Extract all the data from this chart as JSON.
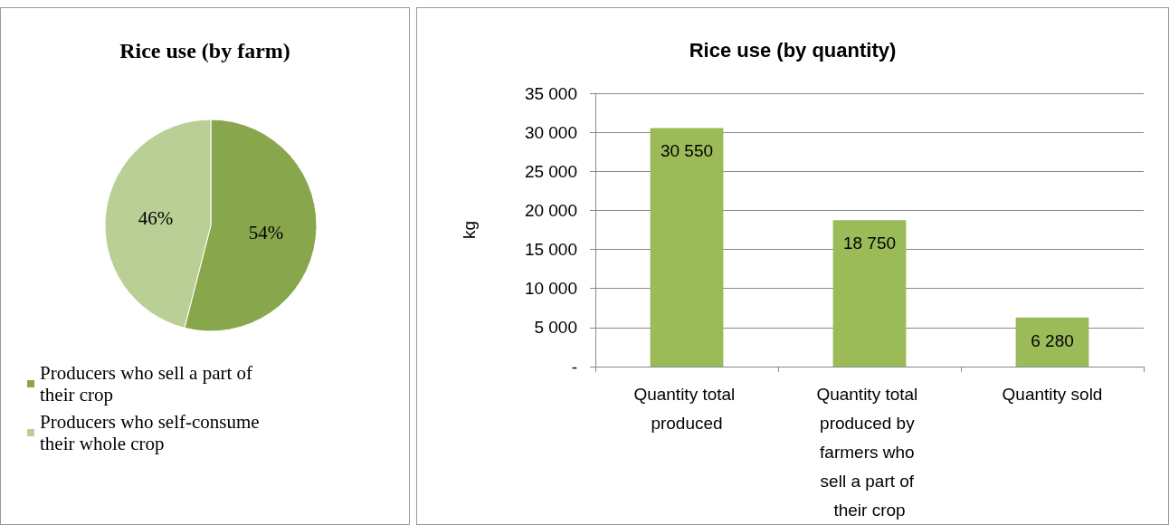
{
  "chart_data": [
    {
      "type": "pie",
      "title": "Rice use (by farm)",
      "categories": [
        "Producers who sell a part of their crop",
        "Producers who self-consume their whole crop"
      ],
      "values": [
        54,
        46
      ],
      "colors": [
        "#88a64c",
        "#bacf95"
      ],
      "value_labels": [
        "54%",
        "46%"
      ],
      "legend": "bottom"
    },
    {
      "type": "bar",
      "title": "Rice use (by quantity)",
      "ylabel": "kg",
      "categories": [
        "Quantity total produced",
        "Quantity total produced by farmers who sell a part of their crop",
        "Quantity sold"
      ],
      "values": [
        30550,
        18750,
        6280
      ],
      "color": "#9bbb59",
      "value_labels": [
        "30 550",
        "18 750",
        "6 280"
      ],
      "ylim": [
        0,
        35000
      ],
      "yticks": [
        {
          "value": 0,
          "label": "-"
        },
        {
          "value": 5000,
          "label": "5 000"
        },
        {
          "value": 10000,
          "label": "10 000"
        },
        {
          "value": 15000,
          "label": "15 000"
        },
        {
          "value": 20000,
          "label": "20 000"
        },
        {
          "value": 25000,
          "label": "25 000"
        },
        {
          "value": 30000,
          "label": "30 000"
        },
        {
          "value": 35000,
          "label": "35 000"
        }
      ],
      "grid": "y"
    }
  ]
}
